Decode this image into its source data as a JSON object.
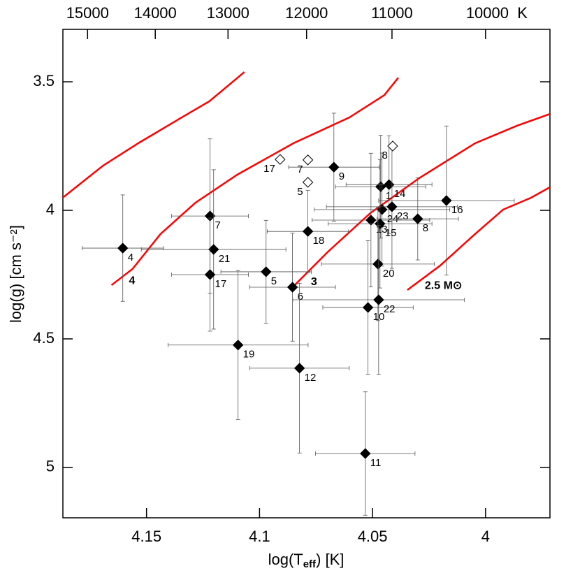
{
  "chart_data": {
    "type": "scatter",
    "xlabel": {
      "text": "log(T",
      "sub": "eff",
      "tail": ") [K]"
    },
    "ylabel": "log(g) [cm s⁻²]",
    "xlim": [
      4.187,
      3.9715
    ],
    "ylim": [
      3.296,
      5.196
    ],
    "xticks": [
      4.15,
      4.1,
      4.05,
      4
    ],
    "yticks": [
      3.5,
      4,
      4.5,
      5
    ],
    "x2ticks": [
      15000,
      14000,
      13000,
      12000,
      11000,
      {
        "value": 10000,
        "label": "10000  K"
      }
    ],
    "series": [
      {
        "filled": true,
        "color": "#000000",
        "labels": [
          "4",
          "7",
          "21",
          "17",
          "19",
          "5",
          "6",
          "12",
          "18",
          "9",
          "1",
          "14",
          "24",
          "23",
          "13",
          "15",
          "8",
          "16",
          "20",
          "10",
          "22",
          "11"
        ],
        "x": [
          4.1605,
          4.1219,
          4.1203,
          4.1219,
          4.1095,
          4.0971,
          4.0854,
          4.0823,
          4.0786,
          4.0671,
          4.0464,
          4.0427,
          4.0458,
          4.0414,
          4.0507,
          4.0467,
          4.03,
          4.0173,
          4.0476,
          4.052,
          4.0473,
          4.0532
        ],
        "y": [
          4.147,
          4.022,
          4.152,
          4.25,
          4.524,
          4.239,
          4.299,
          4.614,
          4.082,
          3.832,
          3.908,
          3.9,
          3.997,
          3.986,
          4.038,
          4.052,
          4.033,
          3.962,
          4.209,
          4.378,
          4.348,
          4.946
        ],
        "xerr": [
          0.018,
          0.017,
          0.032,
          0.017,
          0.031,
          0.02,
          0.019,
          0.022,
          0.018,
          0.02,
          0.02,
          0.019,
          0.03,
          0.029,
          0.026,
          0.023,
          0.018,
          0.03,
          0.025,
          0.02,
          0.038,
          0.022
        ],
        "yerr": [
          0.207,
          0.3,
          0.31,
          0.22,
          0.29,
          0.2,
          0.21,
          0.33,
          0.16,
          0.21,
          0.2,
          0.19,
          0.22,
          0.24,
          0.26,
          0.25,
          0.16,
          0.29,
          0.22,
          0.26,
          0.29,
          0.24
        ]
      },
      {
        "filled": false,
        "color": "#000000",
        "labels": [
          "17",
          "7",
          "5",
          "8"
        ],
        "x": [
          4.0909,
          4.0786,
          4.0786,
          4.0411
        ],
        "y": [
          3.802,
          3.804,
          3.891,
          3.75
        ]
      }
    ],
    "tracks": [
      {
        "color": "#ff0000",
        "x": [
          4.1871,
          4.1692,
          4.1531,
          4.1345,
          4.1222,
          4.1067
        ],
        "y": [
          3.951,
          3.826,
          3.736,
          3.639,
          3.576,
          3.462
        ]
      },
      {
        "name": "4",
        "color": "#ff0000",
        "x": [
          4.1655,
          4.1562,
          4.1438,
          4.1283,
          4.1098,
          4.085,
          4.0603,
          4.0448,
          4.0386
        ],
        "y": [
          4.291,
          4.228,
          4.092,
          3.97,
          3.861,
          3.739,
          3.639,
          3.552,
          3.484
        ]
      },
      {
        "name": "3",
        "color": "#ff0000",
        "x": [
          4.085,
          4.0696,
          4.051,
          4.0294,
          4.0046,
          3.9861,
          3.9715
        ],
        "y": [
          4.296,
          4.16,
          4.011,
          3.875,
          3.739,
          3.671,
          3.625
        ]
      },
      {
        "name": "2.5 M⊙",
        "color": "#ff0000",
        "x": [
          4.0346,
          4.0201,
          4.0046,
          3.9922,
          3.9799,
          3.9715
        ],
        "y": [
          4.31,
          4.215,
          4.092,
          3.997,
          3.951,
          3.91
        ]
      }
    ]
  }
}
